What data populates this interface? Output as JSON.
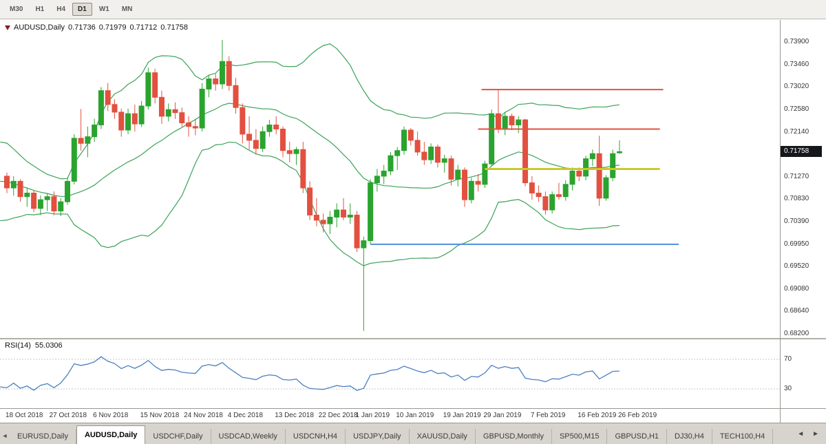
{
  "toolbar": {
    "timeframes": [
      {
        "label": "M30",
        "active": false
      },
      {
        "label": "H1",
        "active": false
      },
      {
        "label": "H4",
        "active": false
      },
      {
        "label": "D1",
        "active": true
      },
      {
        "label": "W1",
        "active": false
      },
      {
        "label": "MN",
        "active": false
      }
    ]
  },
  "chart": {
    "title": {
      "symbol": "AUDUSD,Daily",
      "open": "0.71736",
      "high": "0.71979",
      "low": "0.71712",
      "close": "0.71758"
    },
    "price_axis": {
      "current_price": "0.71758"
    }
  },
  "rsi": {
    "label": "RSI(14)",
    "value": "55.0306"
  },
  "tabs": {
    "items": [
      {
        "label": "EURUSD,Daily",
        "active": false
      },
      {
        "label": "AUDUSD,Daily",
        "active": true
      },
      {
        "label": "USDCHF,Daily",
        "active": false
      },
      {
        "label": "USDCAD,Weekly",
        "active": false
      },
      {
        "label": "USDCNH,H4",
        "active": false
      },
      {
        "label": "USDJPY,Daily",
        "active": false
      },
      {
        "label": "XAUUSD,Daily",
        "active": false
      },
      {
        "label": "GBPUSD,Monthly",
        "active": false
      },
      {
        "label": "SP500,M15",
        "active": false
      },
      {
        "label": "GBPUSD,H1",
        "active": false
      },
      {
        "label": "DJ30,H4",
        "active": false
      },
      {
        "label": "TECH100,H4",
        "active": false
      }
    ],
    "nav": {
      "scroll_left": "◄",
      "left": "◄",
      "right": "►"
    }
  },
  "colors": {
    "bull": "#2aa32f",
    "bear": "#e2503f",
    "bollinger": "#3ba257",
    "rsi_line": "#4a7fc1",
    "badge_bg": "#14181c"
  },
  "chart_data": {
    "type": "candlestick",
    "symbol": "AUDUSD",
    "timeframe": "Daily",
    "y_axis": {
      "top": 0.7433,
      "bottom": 0.6812,
      "tick_labels": [
        "0.73900",
        "0.73460",
        "0.73020",
        "0.72580",
        "0.72140",
        "0.71700",
        "0.71270",
        "0.70830",
        "0.70390",
        "0.69950",
        "0.69520",
        "0.69080",
        "0.68640",
        "0.68200"
      ]
    },
    "x_axis_labels": [
      {
        "text": "18 Oct 2018",
        "index": 0
      },
      {
        "text": "27 Oct 2018",
        "index": 6.5
      },
      {
        "text": "6 Nov 2018",
        "index": 13
      },
      {
        "text": "15 Nov 2018",
        "index": 20
      },
      {
        "text": "24 Nov 2018",
        "index": 26.5
      },
      {
        "text": "4 Dec 2018",
        "index": 33
      },
      {
        "text": "13 Dec 2018",
        "index": 40
      },
      {
        "text": "22 Dec 2018",
        "index": 46.5
      },
      {
        "text": "1 Jan 2019",
        "index": 52
      },
      {
        "text": "10 Jan 2019",
        "index": 58
      },
      {
        "text": "19 Jan 2019",
        "index": 65
      },
      {
        "text": "29 Jan 2019",
        "index": 71
      },
      {
        "text": "7 Feb 2019",
        "index": 78
      },
      {
        "text": "16 Feb 2019",
        "index": 85
      },
      {
        "text": "26 Feb 2019",
        "index": 91
      }
    ],
    "dates": [
      "2018.10.18",
      "2018.10.19",
      "2018.10.22",
      "2018.10.23",
      "2018.10.24",
      "2018.10.25",
      "2018.10.26",
      "2018.10.29",
      "2018.10.30",
      "2018.10.31",
      "2018.11.01",
      "2018.11.02",
      "2018.11.05",
      "2018.11.06",
      "2018.11.07",
      "2018.11.08",
      "2018.11.09",
      "2018.11.12",
      "2018.11.13",
      "2018.11.14",
      "2018.11.15",
      "2018.11.16",
      "2018.11.19",
      "2018.11.20",
      "2018.11.21",
      "2018.11.22",
      "2018.11.23",
      "2018.11.26",
      "2018.11.27",
      "2018.11.28",
      "2018.11.29",
      "2018.11.30",
      "2018.12.03",
      "2018.12.04",
      "2018.12.05",
      "2018.12.06",
      "2018.12.07",
      "2018.12.10",
      "2018.12.11",
      "2018.12.12",
      "2018.12.13",
      "2018.12.14",
      "2018.12.17",
      "2018.12.18",
      "2018.12.19",
      "2018.12.20",
      "2018.12.21",
      "2018.12.24",
      "2018.12.26",
      "2018.12.27",
      "2018.12.28",
      "2018.12.31",
      "2019.01.02",
      "2019.01.03",
      "2019.01.04",
      "2019.01.07",
      "2019.01.08",
      "2019.01.09",
      "2019.01.10",
      "2019.01.11",
      "2019.01.14",
      "2019.01.15",
      "2019.01.16",
      "2019.01.17",
      "2019.01.18",
      "2019.01.21",
      "2019.01.22",
      "2019.01.23",
      "2019.01.24",
      "2019.01.25",
      "2019.01.28",
      "2019.01.29",
      "2019.01.30",
      "2019.01.31",
      "2019.02.01",
      "2019.02.04",
      "2019.02.05",
      "2019.02.06",
      "2019.02.07",
      "2019.02.08",
      "2019.02.11",
      "2019.02.12",
      "2019.02.13",
      "2019.02.14",
      "2019.02.15",
      "2019.02.18",
      "2019.02.19",
      "2019.02.20",
      "2019.02.21",
      "2019.02.22",
      "2019.02.25",
      "2019.02.26"
    ],
    "ohlc": [
      [
        0.7128,
        0.7135,
        0.7095,
        0.7105
      ],
      [
        0.7105,
        0.7128,
        0.709,
        0.7118
      ],
      [
        0.7118,
        0.7122,
        0.7078,
        0.7088
      ],
      [
        0.7088,
        0.7105,
        0.7068,
        0.7095
      ],
      [
        0.7095,
        0.71,
        0.7058,
        0.7065
      ],
      [
        0.7065,
        0.709,
        0.7052,
        0.7082
      ],
      [
        0.7082,
        0.7095,
        0.706,
        0.7088
      ],
      [
        0.7088,
        0.7098,
        0.7052,
        0.706
      ],
      [
        0.706,
        0.7085,
        0.705,
        0.7078
      ],
      [
        0.7078,
        0.7125,
        0.7072,
        0.7118
      ],
      [
        0.7118,
        0.721,
        0.7112,
        0.7202
      ],
      [
        0.7202,
        0.7259,
        0.7178,
        0.7192
      ],
      [
        0.7192,
        0.7225,
        0.7165,
        0.7205
      ],
      [
        0.7205,
        0.724,
        0.7195,
        0.7228
      ],
      [
        0.7228,
        0.7302,
        0.722,
        0.7295
      ],
      [
        0.7295,
        0.731,
        0.7255,
        0.7268
      ],
      [
        0.7268,
        0.7278,
        0.724,
        0.7253
      ],
      [
        0.7253,
        0.726,
        0.7205,
        0.7218
      ],
      [
        0.7218,
        0.726,
        0.721,
        0.725
      ],
      [
        0.725,
        0.7268,
        0.7215,
        0.723
      ],
      [
        0.723,
        0.7275,
        0.7224,
        0.7265
      ],
      [
        0.7265,
        0.734,
        0.7258,
        0.733
      ],
      [
        0.733,
        0.7338,
        0.727,
        0.7282
      ],
      [
        0.7282,
        0.7295,
        0.723,
        0.7245
      ],
      [
        0.7245,
        0.727,
        0.7235,
        0.7258
      ],
      [
        0.7258,
        0.7272,
        0.724,
        0.7252
      ],
      [
        0.7252,
        0.7262,
        0.7225,
        0.7232
      ],
      [
        0.7232,
        0.7245,
        0.7205,
        0.7225
      ],
      [
        0.7225,
        0.724,
        0.7208,
        0.7222
      ],
      [
        0.7222,
        0.731,
        0.7215,
        0.7298
      ],
      [
        0.7298,
        0.7325,
        0.7282,
        0.7318
      ],
      [
        0.7318,
        0.7328,
        0.7295,
        0.7308
      ],
      [
        0.7308,
        0.7394,
        0.7298,
        0.7352
      ],
      [
        0.7352,
        0.7362,
        0.7295,
        0.7305
      ],
      [
        0.7305,
        0.732,
        0.725,
        0.7262
      ],
      [
        0.7262,
        0.727,
        0.7192,
        0.721
      ],
      [
        0.721,
        0.7245,
        0.718,
        0.7198
      ],
      [
        0.7198,
        0.722,
        0.717,
        0.7182
      ],
      [
        0.7182,
        0.7225,
        0.7175,
        0.7215
      ],
      [
        0.7215,
        0.7238,
        0.7205,
        0.7228
      ],
      [
        0.7228,
        0.7245,
        0.721,
        0.722
      ],
      [
        0.722,
        0.7225,
        0.7165,
        0.7178
      ],
      [
        0.7178,
        0.7195,
        0.7155,
        0.7172
      ],
      [
        0.7172,
        0.7185,
        0.715,
        0.718
      ],
      [
        0.718,
        0.7195,
        0.7095,
        0.7105
      ],
      [
        0.7105,
        0.7118,
        0.7042,
        0.7052
      ],
      [
        0.7052,
        0.7085,
        0.703,
        0.7042
      ],
      [
        0.7042,
        0.7055,
        0.7018,
        0.7035
      ],
      [
        0.7035,
        0.706,
        0.7015,
        0.7048
      ],
      [
        0.7048,
        0.7075,
        0.7028,
        0.7062
      ],
      [
        0.7062,
        0.7085,
        0.7042,
        0.7048
      ],
      [
        0.7048,
        0.7075,
        0.7035,
        0.7052
      ],
      [
        0.7052,
        0.706,
        0.698,
        0.6988
      ],
      [
        0.6988,
        0.701,
        0.6826,
        0.7002
      ],
      [
        0.7002,
        0.7122,
        0.6995,
        0.7115
      ],
      [
        0.7115,
        0.7142,
        0.7098,
        0.7128
      ],
      [
        0.7128,
        0.715,
        0.7112,
        0.7138
      ],
      [
        0.7138,
        0.7175,
        0.713,
        0.7168
      ],
      [
        0.7168,
        0.7185,
        0.714,
        0.7178
      ],
      [
        0.7178,
        0.7225,
        0.717,
        0.7218
      ],
      [
        0.7218,
        0.7222,
        0.7188,
        0.7198
      ],
      [
        0.7198,
        0.7215,
        0.7168,
        0.7175
      ],
      [
        0.7175,
        0.7195,
        0.715,
        0.716
      ],
      [
        0.716,
        0.7192,
        0.7152,
        0.7185
      ],
      [
        0.7185,
        0.719,
        0.7145,
        0.7155
      ],
      [
        0.7155,
        0.717,
        0.7135,
        0.7162
      ],
      [
        0.7162,
        0.7168,
        0.711,
        0.7122
      ],
      [
        0.7122,
        0.715,
        0.7108,
        0.714
      ],
      [
        0.714,
        0.7145,
        0.7068,
        0.7082
      ],
      [
        0.7082,
        0.7125,
        0.7075,
        0.7118
      ],
      [
        0.7118,
        0.7132,
        0.7098,
        0.7112
      ],
      [
        0.7112,
        0.7158,
        0.7105,
        0.7152
      ],
      [
        0.7152,
        0.7258,
        0.7148,
        0.725
      ],
      [
        0.725,
        0.7297,
        0.7212,
        0.722
      ],
      [
        0.722,
        0.7252,
        0.7208,
        0.7245
      ],
      [
        0.7245,
        0.725,
        0.7218,
        0.7228
      ],
      [
        0.7228,
        0.7245,
        0.7212,
        0.7238
      ],
      [
        0.7238,
        0.724,
        0.7108,
        0.7115
      ],
      [
        0.7115,
        0.7128,
        0.7082,
        0.7095
      ],
      [
        0.7095,
        0.711,
        0.7078,
        0.7088
      ],
      [
        0.7088,
        0.7098,
        0.7053,
        0.7062
      ],
      [
        0.7062,
        0.7098,
        0.7055,
        0.7092
      ],
      [
        0.7092,
        0.7115,
        0.7082,
        0.7088
      ],
      [
        0.7088,
        0.712,
        0.708,
        0.7112
      ],
      [
        0.7112,
        0.7145,
        0.71,
        0.7138
      ],
      [
        0.7138,
        0.7145,
        0.7118,
        0.7128
      ],
      [
        0.7128,
        0.7168,
        0.712,
        0.7162
      ],
      [
        0.7162,
        0.718,
        0.7148,
        0.7172
      ],
      [
        0.7172,
        0.7207,
        0.707,
        0.7085
      ],
      [
        0.7085,
        0.713,
        0.708,
        0.7125
      ],
      [
        0.7125,
        0.718,
        0.7118,
        0.7172
      ],
      [
        0.71736,
        0.71979,
        0.71712,
        0.71758
      ]
    ],
    "seed_closes_for_indicators": [
      0.719,
      0.7185,
      0.7175,
      0.716,
      0.715,
      0.714,
      0.713,
      0.712,
      0.7115,
      0.7108,
      0.71,
      0.7095,
      0.7088,
      0.7082,
      0.7075,
      0.7068,
      0.706,
      0.709,
      0.711
    ],
    "indicators": [
      {
        "type": "bollinger_bands",
        "period": 20,
        "deviation": 2,
        "color": "#3ba257"
      },
      {
        "type": "rsi",
        "period": 14,
        "current_value": 55.0306,
        "levels": [
          70,
          30
        ],
        "color": "#4a7fc1"
      }
    ],
    "overlay_lines": [
      {
        "name": "resistance-line-upper",
        "price": 0.7297,
        "from_index": 70.5,
        "to_index": 97.5,
        "color": "#e05243",
        "width": 2
      },
      {
        "name": "resistance-line-lower",
        "price": 0.722,
        "from_index": 70,
        "to_index": 97,
        "color": "#e05243",
        "width": 2
      },
      {
        "name": "breakout-line-yellow",
        "price": 0.7142,
        "from_index": 71,
        "to_index": 97,
        "color": "#c9c930",
        "width": 3
      },
      {
        "name": "support-line-blue",
        "price": 0.6995,
        "from_index": 54,
        "to_index": 99.8,
        "color": "#4f8fdd",
        "width": 2
      }
    ]
  }
}
